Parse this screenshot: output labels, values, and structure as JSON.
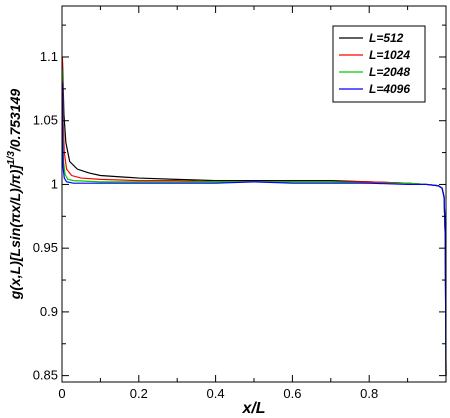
{
  "chart_data": {
    "type": "line",
    "title": "",
    "xlabel": "x/L",
    "ylabel": "g(x,L)[Lsin(πx/L)/π)]^(1/3)/0.753149",
    "ylabel_base": "g(x,L)[Lsin(πx/L)/π)]",
    "ylabel_exponent": "1/3",
    "ylabel_suffix": "/0.753149",
    "xlim": [
      0,
      1
    ],
    "ylim": [
      0.845,
      1.14
    ],
    "x_ticks": [
      0,
      0.2,
      0.4,
      0.6,
      0.8
    ],
    "x_tick_labels": [
      "0",
      "0.2",
      "0.4",
      "0.6",
      "0.8"
    ],
    "y_ticks": [
      0.85,
      0.9,
      0.95,
      1,
      1.05,
      1.1
    ],
    "y_tick_labels": [
      "0.85",
      "0.9",
      "0.95",
      "1",
      "1.05",
      "1.1"
    ],
    "grid": false,
    "legend_position": "top-right",
    "series": [
      {
        "name": "L=512",
        "color": "#000000",
        "points": [
          [
            0.001,
            1.1
          ],
          [
            0.005,
            1.055
          ],
          [
            0.01,
            1.033
          ],
          [
            0.02,
            1.018
          ],
          [
            0.04,
            1.012
          ],
          [
            0.07,
            1.009
          ],
          [
            0.1,
            1.007
          ],
          [
            0.2,
            1.005
          ],
          [
            0.3,
            1.004
          ],
          [
            0.4,
            1.003
          ],
          [
            0.5,
            1.003
          ],
          [
            0.6,
            1.003
          ],
          [
            0.7,
            1.003
          ],
          [
            0.8,
            1.002
          ],
          [
            0.9,
            1.001
          ],
          [
            0.95,
            1.0
          ],
          [
            0.98,
            0.999
          ],
          [
            0.99,
            0.997
          ],
          [
            0.995,
            0.99
          ],
          [
            0.998,
            0.96
          ],
          [
            1.0,
            0.85
          ]
        ]
      },
      {
        "name": "L=1024",
        "color": "#ff0000",
        "points": [
          [
            0.001,
            1.1
          ],
          [
            0.003,
            1.05
          ],
          [
            0.006,
            1.025
          ],
          [
            0.012,
            1.012
          ],
          [
            0.025,
            1.007
          ],
          [
            0.05,
            1.005
          ],
          [
            0.1,
            1.004
          ],
          [
            0.2,
            1.003
          ],
          [
            0.3,
            1.003
          ],
          [
            0.4,
            1.002
          ],
          [
            0.5,
            1.002
          ],
          [
            0.6,
            1.002
          ],
          [
            0.7,
            1.002
          ],
          [
            0.8,
            1.002
          ],
          [
            0.9,
            1.001
          ],
          [
            0.95,
            1.0
          ],
          [
            0.98,
            0.999
          ],
          [
            0.99,
            0.997
          ],
          [
            0.995,
            0.99
          ],
          [
            0.998,
            0.96
          ],
          [
            1.0,
            0.85
          ]
        ]
      },
      {
        "name": "L=2048",
        "color": "#00cc00",
        "points": [
          [
            0.001,
            1.09
          ],
          [
            0.002,
            1.04
          ],
          [
            0.004,
            1.018
          ],
          [
            0.008,
            1.008
          ],
          [
            0.015,
            1.004
          ],
          [
            0.03,
            1.003
          ],
          [
            0.1,
            1.002
          ],
          [
            0.2,
            1.002
          ],
          [
            0.3,
            1.002
          ],
          [
            0.4,
            1.002
          ],
          [
            0.5,
            1.002
          ],
          [
            0.6,
            1.002
          ],
          [
            0.7,
            1.002
          ],
          [
            0.8,
            1.001
          ],
          [
            0.9,
            1.001
          ],
          [
            0.95,
            1.0
          ],
          [
            0.98,
            0.999
          ],
          [
            0.99,
            0.997
          ],
          [
            0.995,
            0.99
          ],
          [
            0.998,
            0.96
          ],
          [
            1.0,
            0.85
          ]
        ]
      },
      {
        "name": "L=4096",
        "color": "#0000ff",
        "points": [
          [
            0.001,
            1.08
          ],
          [
            0.0015,
            1.035
          ],
          [
            0.003,
            1.013
          ],
          [
            0.006,
            1.005
          ],
          [
            0.012,
            1.002
          ],
          [
            0.03,
            1.001
          ],
          [
            0.1,
            1.001
          ],
          [
            0.2,
            1.001
          ],
          [
            0.3,
            1.001
          ],
          [
            0.4,
            1.001
          ],
          [
            0.5,
            1.002
          ],
          [
            0.6,
            1.001
          ],
          [
            0.7,
            1.001
          ],
          [
            0.8,
            1.001
          ],
          [
            0.9,
            1.0
          ],
          [
            0.95,
            1.0
          ],
          [
            0.98,
            0.999
          ],
          [
            0.99,
            0.997
          ],
          [
            0.995,
            0.99
          ],
          [
            0.998,
            0.96
          ],
          [
            1.0,
            0.85
          ]
        ]
      }
    ]
  }
}
